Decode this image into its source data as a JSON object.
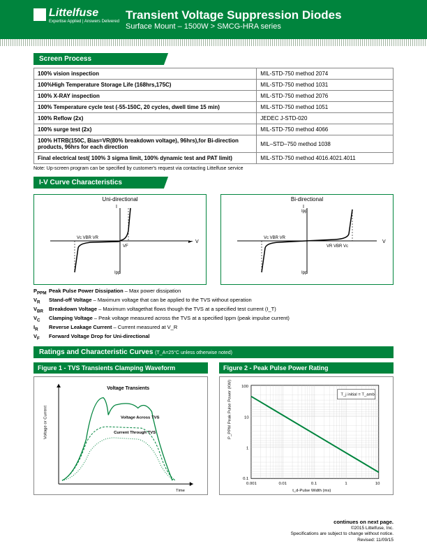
{
  "header": {
    "logo_main": "Littelfuse",
    "logo_sub": "Expertise Applied | Answers Delivered",
    "title": "Transient Voltage Suppression Diodes",
    "subtitle": "Surface Mount – 1500W  >  SMCG-HRA series"
  },
  "screen_process": {
    "title": "Screen Process",
    "rows": [
      [
        "100% vision inspection",
        "MIL-STD-750 method 2074"
      ],
      [
        "100%High Temperature Storage Life (168hrs,175C)",
        "MIL-STD-750 method 1031"
      ],
      [
        "100% X-RAY inspection",
        "MIL-STD-750 method 2076"
      ],
      [
        "100% Temperature cycle test (-55-150C, 20 cycles, dwell time 15 min)",
        "MIL-STD-750 method 1051"
      ],
      [
        "100% Reflow (2x)",
        "JEDEC J-STD-020"
      ],
      [
        "100% surge test   (2x)",
        "MIL-STD-750 method 4066"
      ],
      [
        "100% HTRB(150C,  Bias=VR(80% breakdown voltage), 96hrs),for Bi-direction products, 96hrs for each direction",
        "MIL–STD–750 method 1038"
      ],
      [
        "Final electrical test( 100% 3 sigma limit, 100% dynamic test and PAT limit)",
        "MIL-STD-750 method 4016.4021.4011"
      ]
    ],
    "note": "Note: Up-screen program can be specified by customer's request via contacting Littelfuse service"
  },
  "iv_section": {
    "title": "I-V Curve Characteristics",
    "curves": [
      {
        "title": "Uni-directional",
        "labels_left": "Vc VBR VR",
        "labels_right": "VF"
      },
      {
        "title": "Bi-directional",
        "labels_left": "Vc VBR VR",
        "labels_right": "VR VBR Vc"
      }
    ],
    "defs": [
      {
        "sym": "P_PPM",
        "label": "Peak Pulse Power Dissipation",
        "desc": " – Max power dissipation"
      },
      {
        "sym": "V_R",
        "label": "Stand-off Voltage",
        "desc": " – Maximum voltage that can be applied to the TVS without operation"
      },
      {
        "sym": "V_BR",
        "label": "Breakdown Voltage",
        "desc": " –  Maximum voltagethat flows though the TVS at a specified test current (I_T)"
      },
      {
        "sym": "V_C",
        "label": "Clamping Voltage",
        "desc": " – Peak voltage measured across the TVS at a specified Ippm (peak impulse current)"
      },
      {
        "sym": "I_R",
        "label": "Reverse Leakage Current",
        "desc": " – Current measured at V_R"
      },
      {
        "sym": "V_F",
        "label": "Forward Voltage Drop for Uni-directional",
        "desc": ""
      }
    ]
  },
  "ratings": {
    "title": "Ratings and Characteristic Curves",
    "note": "(T_A=25°C unless otherwise noted)"
  },
  "fig1": {
    "title": "Figure 1 - TVS Transients Clamping Waveform",
    "labels": {
      "y": "Voltage or Current",
      "x": "Time",
      "a": "Voltage Transients",
      "b": "Voltage Across TVS",
      "c": "Current Through TVS"
    },
    "curve_color": "#00843d",
    "axis_color": "#000000"
  },
  "fig2": {
    "title": "Figure 2 - Peak Pulse Power Rating",
    "ylabel": "P_PPM Peak Pulse Power (KW)",
    "xlabel": "t_d-Pulse Width (ms)",
    "yticks": [
      "0.1",
      "1",
      "10",
      "100"
    ],
    "xticks": [
      "0.001",
      "0.01",
      "0.1",
      "1",
      "10"
    ],
    "legend": "T_j initial = T_amb",
    "line_color": "#00843d",
    "grid_color": "#c8c8c8",
    "bg": "#ffffff"
  },
  "footer": {
    "cont": "continues on next page.",
    "c": "©2015 Littelfuse, Inc.",
    "spec": "Specifications are subject to change without notice.",
    "rev": "Revised: 11/09/15"
  }
}
